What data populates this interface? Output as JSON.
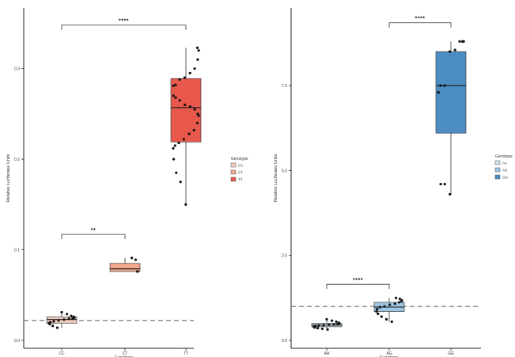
{
  "chart_data": [
    {
      "type": "box",
      "panel_label": "",
      "xlabel": "Genotype",
      "ylabel": "Relative Luciferase Units",
      "yticks": [
        "0.0",
        "0.1",
        "0.2",
        "0.3"
      ],
      "ylim": [
        0,
        0.36
      ],
      "reference_line": 0.022,
      "categories": [
        "CC",
        "CT",
        "TT"
      ],
      "colors": [
        "#f3cdbd",
        "#f4a88c",
        "#e8584c"
      ],
      "boxes": [
        {
          "q1": 0.019,
          "median": 0.023,
          "q3": 0.026,
          "min": 0.014,
          "max": 0.031,
          "points": [
            0.031,
            0.029,
            0.027,
            0.026,
            0.025,
            0.024,
            0.024,
            0.023,
            0.022,
            0.021,
            0.02,
            0.019,
            0.018,
            0.016,
            0.014
          ]
        },
        {
          "q1": 0.076,
          "median": 0.079,
          "q3": 0.085,
          "min": 0.076,
          "max": 0.091,
          "points": [
            0.091,
            0.089,
            0.076,
            0.076
          ]
        },
        {
          "q1": 0.219,
          "median": 0.257,
          "q3": 0.289,
          "min": 0.15,
          "max": 0.323,
          "points": [
            0.323,
            0.32,
            0.31,
            0.3,
            0.295,
            0.29,
            0.288,
            0.282,
            0.281,
            0.27,
            0.268,
            0.265,
            0.26,
            0.258,
            0.255,
            0.25,
            0.248,
            0.24,
            0.232,
            0.228,
            0.222,
            0.218,
            0.215,
            0.212,
            0.2,
            0.185,
            0.175,
            0.15
          ]
        }
      ],
      "brackets": [
        {
          "from": 0,
          "to": 2,
          "label": "****",
          "y": 0.348
        },
        {
          "from": 0,
          "to": 1,
          "label": "**",
          "y": 0.117
        }
      ],
      "legend": {
        "title": "Genotype",
        "items": [
          "CC",
          "CT",
          "TT"
        ],
        "position": "right"
      }
    },
    {
      "type": "box",
      "panel_label": "",
      "xlabel": "Genotype",
      "ylabel": "Relative Luciferase Units",
      "yticks": [
        "0.0",
        "2.5",
        "5.0",
        "7.5"
      ],
      "ylim": [
        0,
        9.6
      ],
      "reference_line": 1.0,
      "categories": [
        "AA",
        "AG",
        "GG"
      ],
      "colors": [
        "#cde0ee",
        "#9cc6e2",
        "#4b8dc2"
      ],
      "boxes": [
        {
          "q1": 0.4,
          "median": 0.45,
          "q3": 0.5,
          "min": 0.32,
          "max": 0.62,
          "points": [
            0.62,
            0.58,
            0.55,
            0.52,
            0.5,
            0.48,
            0.47,
            0.46,
            0.45,
            0.44,
            0.42,
            0.4,
            0.38,
            0.36,
            0.34,
            0.32
          ]
        },
        {
          "q1": 0.85,
          "median": 0.98,
          "q3": 1.12,
          "min": 0.55,
          "max": 1.25,
          "points": [
            1.25,
            1.22,
            1.18,
            1.15,
            1.12,
            1.08,
            1.05,
            1.0,
            0.98,
            0.92,
            0.85,
            0.78,
            0.7,
            0.62,
            0.55
          ]
        },
        {
          "q1": 6.1,
          "median": 7.5,
          "q3": 8.5,
          "min": 4.3,
          "max": 8.8,
          "points": [
            8.8,
            8.8,
            8.8,
            8.8,
            8.55,
            8.5,
            7.5,
            7.5,
            7.3,
            7.3,
            4.6,
            4.6,
            4.3
          ]
        }
      ],
      "brackets": [
        {
          "from": 1,
          "to": 2,
          "label": "****",
          "y": 9.35
        },
        {
          "from": 0,
          "to": 1,
          "label": "****",
          "y": 1.65
        }
      ],
      "legend": {
        "title": "Genotype",
        "items": [
          "AA",
          "AG",
          "GG"
        ],
        "position": "right"
      }
    }
  ]
}
